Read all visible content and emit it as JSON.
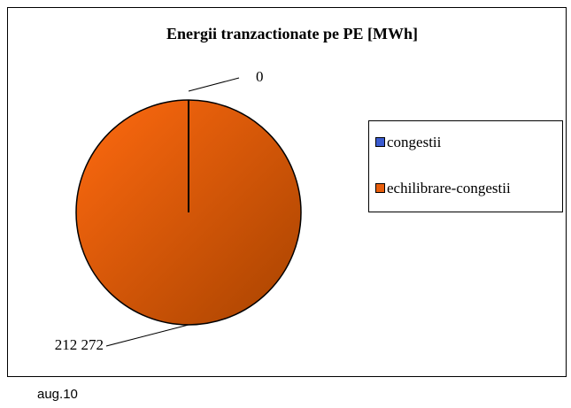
{
  "chart_data": {
    "type": "pie",
    "title": "Energii tranzactionate pe PE [MWh]",
    "categories": [
      "congestii",
      "echilibrare-congestii"
    ],
    "values": [
      0,
      212272
    ],
    "value_labels": [
      "0",
      "212 272"
    ],
    "colors": [
      "#3a5bd0",
      "#e85e0c"
    ],
    "legend": "right"
  },
  "caption": "aug.10"
}
